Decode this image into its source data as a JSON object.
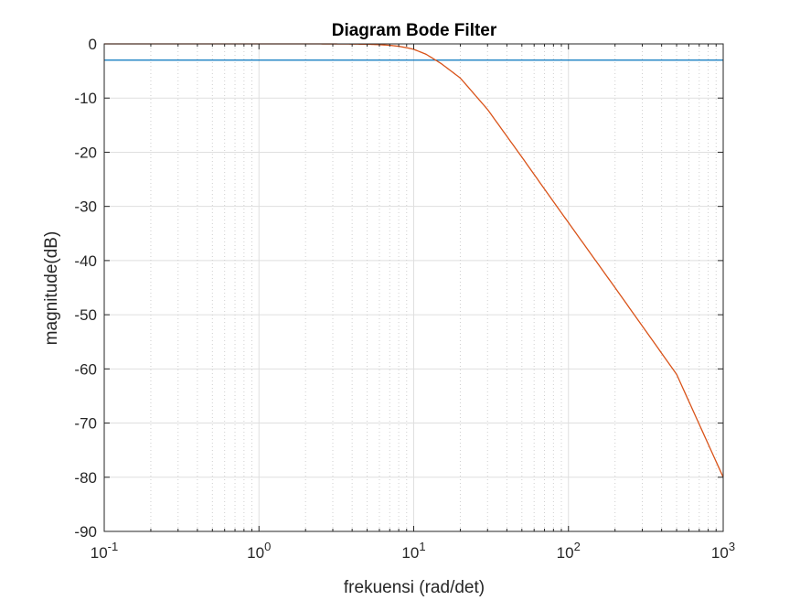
{
  "chart_data": {
    "type": "line",
    "title": "Diagram Bode Filter",
    "xlabel": "frekuensi (rad/det)",
    "ylabel": "magnitude(dB)",
    "x_scale": "log",
    "xlim": [
      0.1,
      1000
    ],
    "ylim": [
      -90,
      0
    ],
    "x_ticks": [
      {
        "base": "10",
        "exp": "-1",
        "value": 0.1
      },
      {
        "base": "10",
        "exp": "0",
        "value": 1
      },
      {
        "base": "10",
        "exp": "1",
        "value": 10
      },
      {
        "base": "10",
        "exp": "2",
        "value": 100
      },
      {
        "base": "10",
        "exp": "3",
        "value": 1000
      }
    ],
    "y_ticks": [
      "0",
      "-10",
      "-20",
      "-30",
      "-40",
      "-50",
      "-60",
      "-70",
      "-80",
      "-90"
    ],
    "grid": true,
    "series": [
      {
        "color": "#0072BD",
        "x": [
          0.1,
          1000
        ],
        "y": [
          -3,
          -3
        ]
      },
      {
        "color": "#D95319",
        "x": [
          0.1,
          0.3,
          1,
          2,
          3,
          4,
          5,
          6,
          7,
          8,
          9,
          10,
          12,
          15,
          20,
          30,
          50,
          70,
          100,
          200,
          500,
          1000
        ],
        "y": [
          0,
          0,
          0,
          0,
          -0.01,
          -0.03,
          -0.07,
          -0.14,
          -0.26,
          -0.44,
          -0.71,
          -1.0,
          -1.9,
          -3.6,
          -6.3,
          -12.1,
          -20.9,
          -26.8,
          -33.0,
          -45.0,
          -61.0,
          -80.0
        ]
      }
    ]
  }
}
